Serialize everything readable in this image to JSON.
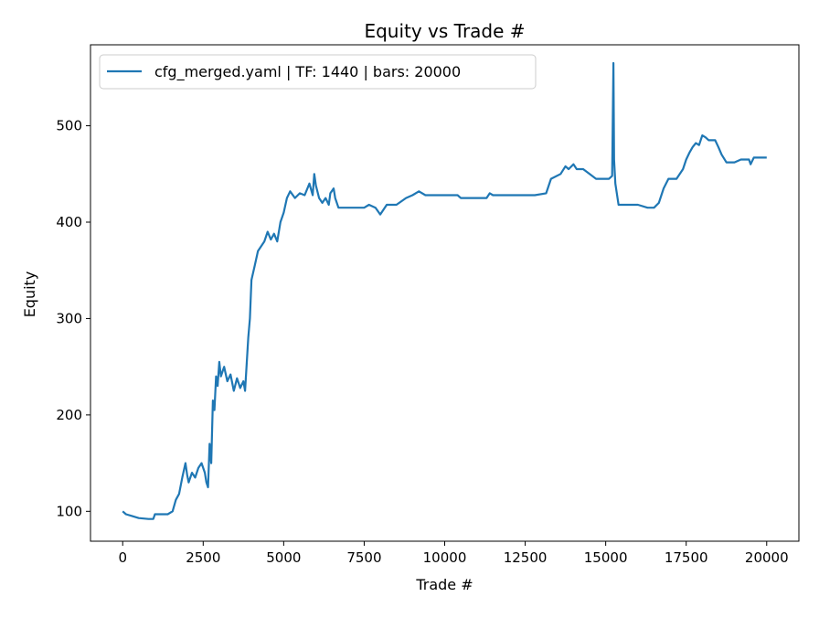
{
  "chart_data": {
    "type": "line",
    "title": "Equity vs Trade #",
    "xlabel": "Trade #",
    "ylabel": "Equity",
    "xlim": [
      -1000,
      21000
    ],
    "ylim": [
      69,
      584
    ],
    "xticks": [
      0,
      2500,
      5000,
      7500,
      10000,
      12500,
      15000,
      17500,
      20000
    ],
    "yticks": [
      100,
      200,
      300,
      400,
      500
    ],
    "grid": false,
    "legend_position": "top-left",
    "series": [
      {
        "name": "cfg_merged.yaml | TF: 1440 | bars: 20000",
        "color": "#1f77b4",
        "points": [
          [
            0,
            100
          ],
          [
            100,
            97
          ],
          [
            300,
            95
          ],
          [
            500,
            93
          ],
          [
            800,
            92
          ],
          [
            950,
            92
          ],
          [
            1000,
            97
          ],
          [
            1400,
            97
          ],
          [
            1550,
            100
          ],
          [
            1650,
            112
          ],
          [
            1750,
            118
          ],
          [
            1850,
            135
          ],
          [
            1950,
            150
          ],
          [
            2000,
            138
          ],
          [
            2050,
            130
          ],
          [
            2150,
            140
          ],
          [
            2250,
            135
          ],
          [
            2350,
            145
          ],
          [
            2450,
            150
          ],
          [
            2550,
            140
          ],
          [
            2600,
            130
          ],
          [
            2650,
            125
          ],
          [
            2700,
            170
          ],
          [
            2750,
            150
          ],
          [
            2800,
            215
          ],
          [
            2850,
            205
          ],
          [
            2900,
            240
          ],
          [
            2950,
            230
          ],
          [
            3000,
            255
          ],
          [
            3050,
            240
          ],
          [
            3150,
            250
          ],
          [
            3250,
            235
          ],
          [
            3350,
            242
          ],
          [
            3450,
            225
          ],
          [
            3550,
            238
          ],
          [
            3650,
            228
          ],
          [
            3750,
            235
          ],
          [
            3800,
            225
          ],
          [
            3900,
            280
          ],
          [
            3950,
            300
          ],
          [
            4000,
            340
          ],
          [
            4100,
            355
          ],
          [
            4200,
            370
          ],
          [
            4300,
            375
          ],
          [
            4400,
            380
          ],
          [
            4500,
            390
          ],
          [
            4600,
            382
          ],
          [
            4700,
            388
          ],
          [
            4800,
            380
          ],
          [
            4900,
            400
          ],
          [
            5000,
            410
          ],
          [
            5100,
            425
          ],
          [
            5200,
            432
          ],
          [
            5350,
            425
          ],
          [
            5500,
            430
          ],
          [
            5650,
            428
          ],
          [
            5800,
            440
          ],
          [
            5900,
            428
          ],
          [
            5950,
            450
          ],
          [
            6000,
            438
          ],
          [
            6100,
            425
          ],
          [
            6200,
            420
          ],
          [
            6300,
            425
          ],
          [
            6400,
            418
          ],
          [
            6450,
            430
          ],
          [
            6550,
            435
          ],
          [
            6600,
            425
          ],
          [
            6700,
            415
          ],
          [
            7000,
            415
          ],
          [
            7500,
            415
          ],
          [
            7650,
            418
          ],
          [
            7850,
            415
          ],
          [
            8000,
            408
          ],
          [
            8200,
            418
          ],
          [
            8500,
            418
          ],
          [
            8800,
            425
          ],
          [
            9000,
            428
          ],
          [
            9200,
            432
          ],
          [
            9400,
            428
          ],
          [
            10000,
            428
          ],
          [
            10400,
            428
          ],
          [
            10500,
            425
          ],
          [
            10800,
            425
          ],
          [
            11300,
            425
          ],
          [
            11400,
            430
          ],
          [
            11500,
            428
          ],
          [
            12000,
            428
          ],
          [
            12800,
            428
          ],
          [
            13150,
            430
          ],
          [
            13300,
            445
          ],
          [
            13600,
            450
          ],
          [
            13750,
            458
          ],
          [
            13850,
            455
          ],
          [
            14000,
            460
          ],
          [
            14100,
            455
          ],
          [
            14300,
            455
          ],
          [
            14500,
            450
          ],
          [
            14700,
            445
          ],
          [
            14900,
            445
          ],
          [
            15100,
            445
          ],
          [
            15200,
            448
          ],
          [
            15240,
            565
          ],
          [
            15260,
            465
          ],
          [
            15300,
            440
          ],
          [
            15400,
            418
          ],
          [
            15600,
            418
          ],
          [
            16000,
            418
          ],
          [
            16300,
            415
          ],
          [
            16500,
            415
          ],
          [
            16650,
            420
          ],
          [
            16800,
            435
          ],
          [
            16950,
            445
          ],
          [
            17200,
            445
          ],
          [
            17400,
            455
          ],
          [
            17500,
            465
          ],
          [
            17600,
            472
          ],
          [
            17700,
            478
          ],
          [
            17800,
            482
          ],
          [
            17900,
            480
          ],
          [
            18000,
            490
          ],
          [
            18100,
            488
          ],
          [
            18200,
            485
          ],
          [
            18400,
            485
          ],
          [
            18500,
            478
          ],
          [
            18600,
            470
          ],
          [
            18750,
            462
          ],
          [
            19000,
            462
          ],
          [
            19200,
            465
          ],
          [
            19450,
            465
          ],
          [
            19500,
            460
          ],
          [
            19600,
            467
          ],
          [
            20000,
            467
          ]
        ]
      }
    ]
  }
}
